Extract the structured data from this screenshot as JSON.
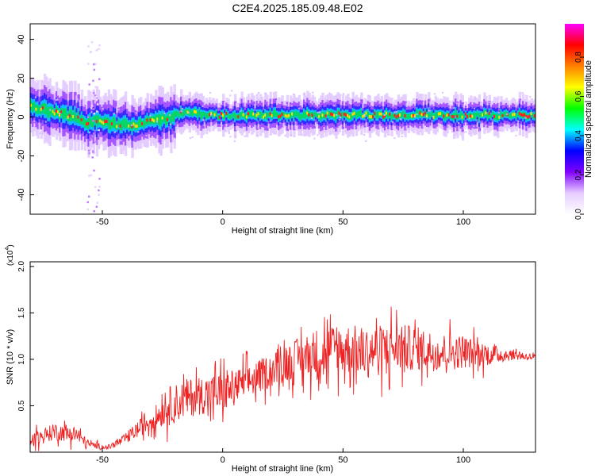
{
  "title": "C2E4.2025.185.09.48.E02",
  "chart_data": [
    {
      "type": "heatmap",
      "xlabel": "Height of straight line (km)",
      "ylabel": "Frequency (Hz)",
      "xlim": [
        -80,
        130
      ],
      "ylim": [
        -50,
        48
      ],
      "xticks": [
        -50,
        0,
        50,
        100
      ],
      "yticks": [
        -40,
        -20,
        0,
        20,
        40
      ],
      "ridge": [
        {
          "x": -80,
          "y": 5
        },
        {
          "x": -72,
          "y": 3
        },
        {
          "x": -65,
          "y": 1
        },
        {
          "x": -60,
          "y": -1
        },
        {
          "x": -57,
          "y": -3
        },
        {
          "x": -53,
          "y": -2
        },
        {
          "x": -48,
          "y": -3
        },
        {
          "x": -43,
          "y": -4
        },
        {
          "x": -38,
          "y": -4
        },
        {
          "x": -33,
          "y": -3
        },
        {
          "x": -28,
          "y": -1
        },
        {
          "x": -23,
          "y": -1
        },
        {
          "x": -18,
          "y": 2
        },
        {
          "x": -12,
          "y": 2
        },
        {
          "x": -5,
          "y": 1
        },
        {
          "x": 0,
          "y": 1
        },
        {
          "x": 10,
          "y": 1
        },
        {
          "x": 20,
          "y": 1
        },
        {
          "x": 30,
          "y": 1
        },
        {
          "x": 40,
          "y": 1
        },
        {
          "x": 50,
          "y": 1
        },
        {
          "x": 60,
          "y": 1
        },
        {
          "x": 70,
          "y": 1
        },
        {
          "x": 80,
          "y": 1
        },
        {
          "x": 90,
          "y": 1
        },
        {
          "x": 100,
          "y": 1
        },
        {
          "x": 110,
          "y": 1
        },
        {
          "x": 120,
          "y": 1
        },
        {
          "x": 130,
          "y": 1
        }
      ]
    },
    {
      "type": "colorbar",
      "label": "Normalized spectral amplitude",
      "range": [
        0,
        0.97
      ],
      "ticks": [
        "0.0",
        "0.2",
        "0.4",
        "0.6",
        "0.8"
      ],
      "colors": [
        "#ffffff",
        "#e6ccff",
        "#8000ff",
        "#0000ff",
        "#00ffff",
        "#00ff00",
        "#ffff00",
        "#ff8000",
        "#ff0000",
        "#ff00ff"
      ]
    },
    {
      "type": "line",
      "xlabel": "Height of straight line (km)",
      "ylabel": "SNR (10 * v/v)",
      "yscale_label": "(x10",
      "yscale_exp": "4",
      "xlim": [
        -80,
        130
      ],
      "ylim": [
        0,
        2.05
      ],
      "xticks": [
        -50,
        0,
        50,
        100
      ],
      "yticks": [
        "0.5",
        "1.0",
        "1.5",
        "2.0"
      ],
      "line_color": "#ee2222",
      "envelope": [
        {
          "x": -80,
          "mean": 0.12,
          "amp": 0.12
        },
        {
          "x": -70,
          "mean": 0.22,
          "amp": 0.15
        },
        {
          "x": -62,
          "mean": 0.2,
          "amp": 0.15
        },
        {
          "x": -55,
          "mean": 0.08,
          "amp": 0.06
        },
        {
          "x": -48,
          "mean": 0.05,
          "amp": 0.04
        },
        {
          "x": -42,
          "mean": 0.12,
          "amp": 0.08
        },
        {
          "x": -35,
          "mean": 0.25,
          "amp": 0.15
        },
        {
          "x": -28,
          "mean": 0.38,
          "amp": 0.2
        },
        {
          "x": -22,
          "mean": 0.5,
          "amp": 0.35
        },
        {
          "x": -15,
          "mean": 0.58,
          "amp": 0.35
        },
        {
          "x": -8,
          "mean": 0.62,
          "amp": 0.35
        },
        {
          "x": 0,
          "mean": 0.65,
          "amp": 0.35
        },
        {
          "x": 10,
          "mean": 0.75,
          "amp": 0.3
        },
        {
          "x": 20,
          "mean": 0.88,
          "amp": 0.3
        },
        {
          "x": 30,
          "mean": 1.0,
          "amp": 0.35
        },
        {
          "x": 40,
          "mean": 1.08,
          "amp": 0.45
        },
        {
          "x": 50,
          "mean": 1.12,
          "amp": 0.45
        },
        {
          "x": 60,
          "mean": 1.08,
          "amp": 0.45
        },
        {
          "x": 70,
          "mean": 1.12,
          "amp": 0.45
        },
        {
          "x": 80,
          "mean": 1.12,
          "amp": 0.4
        },
        {
          "x": 90,
          "mean": 1.08,
          "amp": 0.35
        },
        {
          "x": 100,
          "mean": 1.08,
          "amp": 0.3
        },
        {
          "x": 110,
          "mean": 1.05,
          "amp": 0.2
        },
        {
          "x": 120,
          "mean": 1.05,
          "amp": 0.1
        },
        {
          "x": 130,
          "mean": 1.02,
          "amp": 0.06
        }
      ]
    }
  ]
}
